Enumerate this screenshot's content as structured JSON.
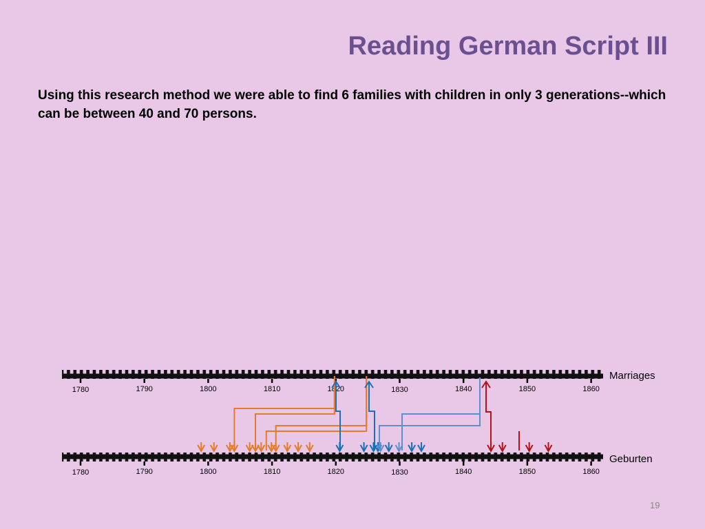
{
  "title": "Reading German Script III",
  "body": "Using this research method we were able to find 6 families with children in only 3 generations--which can be between 40 and 70 persons.",
  "page_number": "19",
  "timelines": {
    "years": [
      1780,
      1790,
      1800,
      1810,
      1820,
      1830,
      1840,
      1850,
      1860
    ],
    "marriages_label": "Marriages",
    "births_label": "Geburten"
  },
  "colors": {
    "orange": "#e57b24",
    "blue": "#1a6fb8",
    "lightblue": "#5b8fd0",
    "red": "#b5111b"
  },
  "births": [
    {
      "year": 1798.9,
      "color": "orange"
    },
    {
      "year": 1800.9,
      "color": "orange"
    },
    {
      "year": 1803.4,
      "color": "orange"
    },
    {
      "year": 1804.1,
      "color": "orange"
    },
    {
      "year": 1806.5,
      "color": "orange"
    },
    {
      "year": 1807.4,
      "color": "orange"
    },
    {
      "year": 1808.3,
      "color": "orange"
    },
    {
      "year": 1809.9,
      "color": "orange"
    },
    {
      "year": 1810.6,
      "color": "orange"
    },
    {
      "year": 1812.4,
      "color": "orange"
    },
    {
      "year": 1814.1,
      "color": "orange"
    },
    {
      "year": 1815.9,
      "color": "orange"
    },
    {
      "year": 1820.6,
      "color": "blue"
    },
    {
      "year": 1824.4,
      "color": "blue"
    },
    {
      "year": 1825.9,
      "color": "blue"
    },
    {
      "year": 1826.6,
      "color": "blue"
    },
    {
      "year": 1827.0,
      "color": "lightblue"
    },
    {
      "year": 1828.3,
      "color": "blue"
    },
    {
      "year": 1829.9,
      "color": "lightblue"
    },
    {
      "year": 1831.9,
      "color": "blue"
    },
    {
      "year": 1833.4,
      "color": "blue"
    },
    {
      "year": 1844.3,
      "color": "red"
    },
    {
      "year": 1846.1,
      "color": "red"
    },
    {
      "year": 1850.3,
      "color": "red"
    },
    {
      "year": 1853.3,
      "color": "red"
    }
  ],
  "connectors": [
    {
      "color": "orange",
      "marriage_year": 1819.9,
      "elbow_year": 1804.1
    },
    {
      "color": "orange",
      "marriage_year": 1819.9,
      "elbow_year": 1807.4
    },
    {
      "color": "orange",
      "marriage_year": 1824.9,
      "elbow_year": 1810.6
    },
    {
      "color": "orange",
      "marriage_year": 1824.9,
      "elbow_year": 1809.1
    }
  ]
}
